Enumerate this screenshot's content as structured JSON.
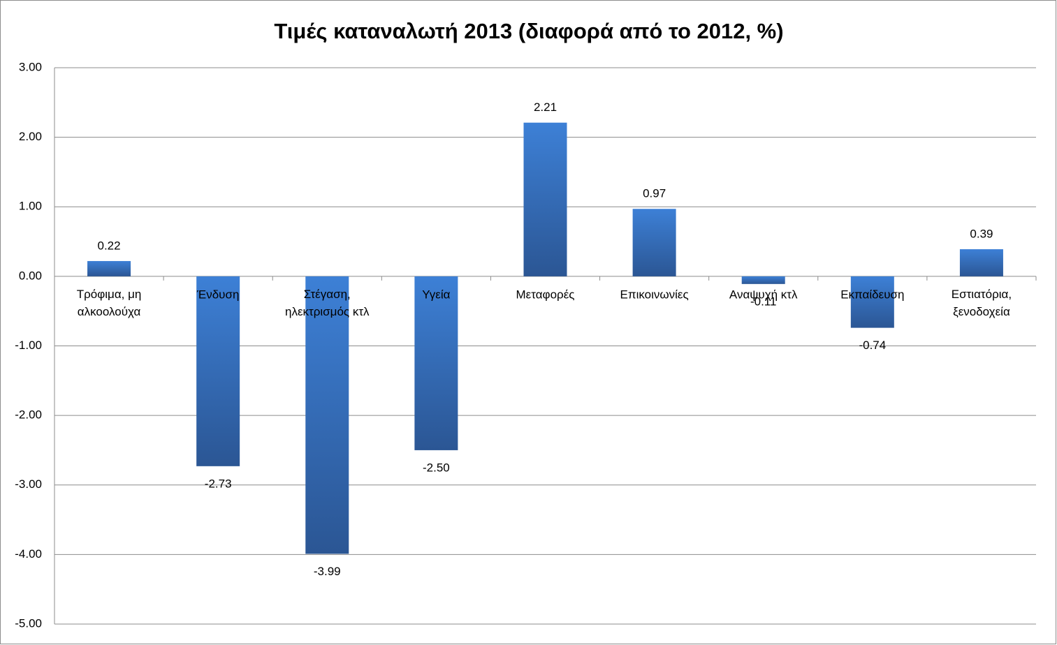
{
  "chart_data": {
    "type": "bar",
    "title": "Τιμές καταναλωτή 2013 (διαφορά από το 2012, %)",
    "categories": [
      "Τρόφιμα, μη αλκοολούχα",
      "Ένδυση",
      "Στέγαση, ηλεκτρισμός κτλ",
      "Υγεία",
      "Μεταφορές",
      "Επικοινωνίες",
      "Αναψυχή κτλ",
      "Εκπαίδευση",
      "Εστιατόρια, ξενοδοχεία"
    ],
    "values": [
      0.22,
      -2.73,
      -3.99,
      -2.5,
      2.21,
      0.97,
      -0.11,
      -0.74,
      0.39
    ],
    "value_labels": [
      "0.22",
      "-2.73",
      "-3.99",
      "-2.50",
      "2.21",
      "0.97",
      "-0.11",
      "-0.74",
      "0.39"
    ],
    "color": "#3d80d6",
    "ylim": [
      -5,
      3
    ],
    "yticks": [
      {
        "value": -5,
        "label": "-5.00"
      },
      {
        "value": -4,
        "label": "-4.00"
      },
      {
        "value": -3,
        "label": "-3.00"
      },
      {
        "value": -2,
        "label": "-2.00"
      },
      {
        "value": -1,
        "label": "-1.00"
      },
      {
        "value": 0,
        "label": "0.00"
      },
      {
        "value": 1,
        "label": "1.00"
      },
      {
        "value": 2,
        "label": "2.00"
      },
      {
        "value": 3,
        "label": "3.00"
      }
    ],
    "grid": true
  }
}
